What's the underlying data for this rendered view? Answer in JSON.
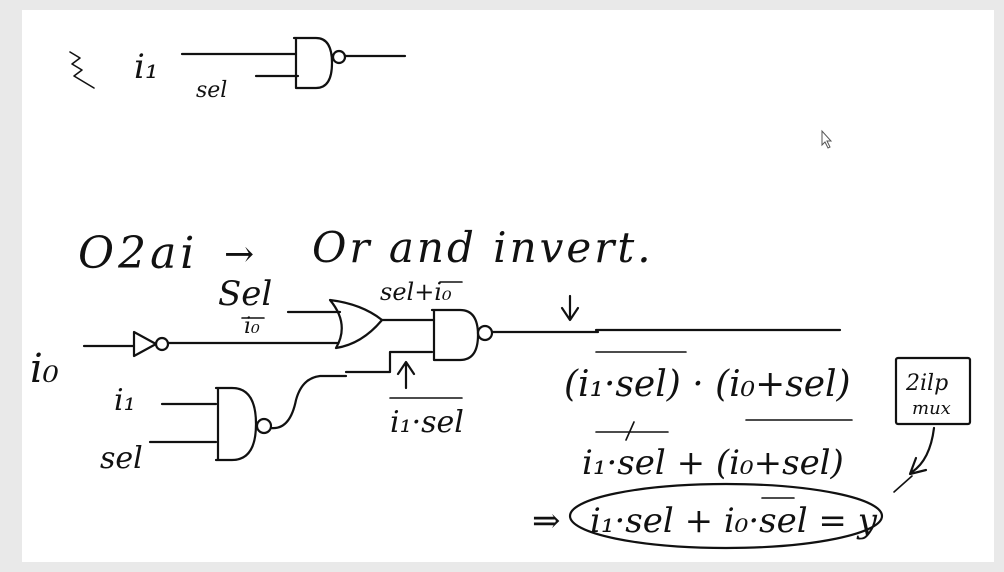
{
  "top_gate": {
    "input_1": "i₁",
    "input_2": "sel"
  },
  "heading": {
    "term": "O2ai",
    "arrow": "→",
    "meaning": "Or and invert."
  },
  "circuit": {
    "input_i0": "i₀",
    "or_input_sel": "Sel",
    "or_input_i0bar": "i₀",
    "and_input_i1": "i₁",
    "and_input_sel": "sel",
    "or_output": "sel+i₀",
    "and_output": "i₁·sel"
  },
  "derivation": {
    "line1": "(i₁·sel) · (i₀+sel)",
    "line2": "i₁·sel + (i₀+sel)",
    "line3_prefix": "⇒",
    "line3": "i₁·sel + i₀·sel = y"
  },
  "note": {
    "line1": "2ilp",
    "line2": "mux"
  }
}
